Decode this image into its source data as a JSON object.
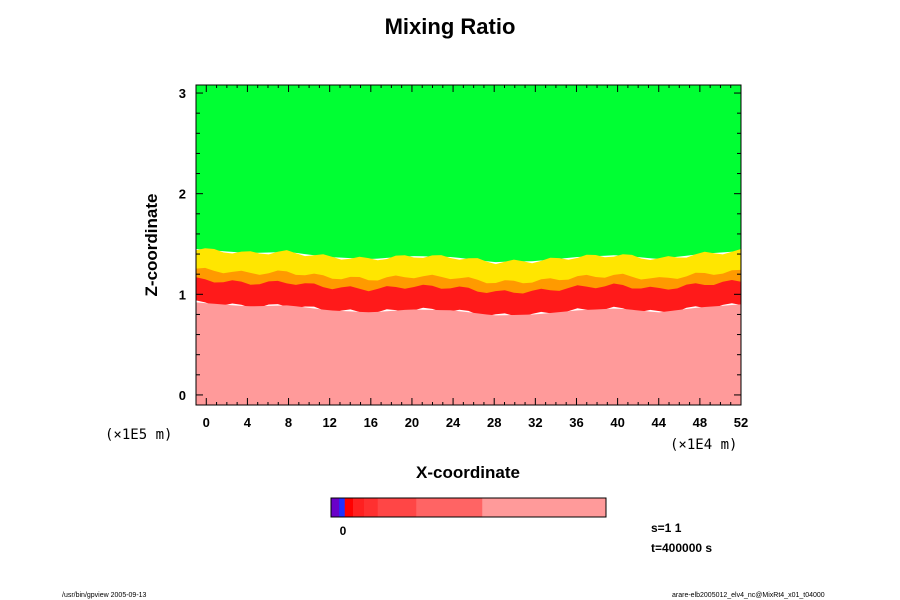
{
  "chart_data": {
    "type": "heatmap",
    "title": "Mixing Ratio",
    "xlabel": "X-coordinate",
    "ylabel": "Z-coordinate",
    "x_unit": "(×1E4 m)",
    "y_unit": "(×1E5 m)",
    "xlim": [
      -1,
      52
    ],
    "ylim": [
      -0.1,
      3.08
    ],
    "x_ticks": [
      "0",
      "4",
      "8",
      "12",
      "16",
      "20",
      "24",
      "28",
      "32",
      "36",
      "40",
      "44",
      "48",
      "52"
    ],
    "y_ticks": [
      "0",
      "1",
      "2",
      "3"
    ],
    "layers": [
      {
        "name": "upper",
        "z_from": 1.45,
        "z_to": 3.08,
        "color": "#00ff33"
      },
      {
        "name": "transition-yellow",
        "z_from": 1.22,
        "z_to": 1.45,
        "color": "#ffe600"
      },
      {
        "name": "transition-orange",
        "z_from": 1.12,
        "z_to": 1.25,
        "color": "#ff9a00"
      },
      {
        "name": "strong-red",
        "z_from": 0.92,
        "z_to": 1.15,
        "color": "#ff1a1a"
      },
      {
        "name": "lower",
        "z_from": -0.1,
        "z_to": 0.92,
        "color": "#ff9a9a"
      }
    ],
    "interface_profile_x": [
      -1,
      4,
      8,
      12,
      16,
      20,
      24,
      28,
      32,
      36,
      40,
      44,
      48,
      52
    ],
    "interface_profile_z": [
      1.2,
      1.16,
      1.17,
      1.12,
      1.1,
      1.13,
      1.12,
      1.07,
      1.08,
      1.12,
      1.14,
      1.1,
      1.15,
      1.18
    ],
    "colorbar": {
      "tick_label": "0",
      "segments": [
        {
          "color": "#6a00c8",
          "width": 0.03
        },
        {
          "color": "#2030ff",
          "width": 0.02
        },
        {
          "color": "#ff0000",
          "width": 0.03
        },
        {
          "color": "#ff2020",
          "width": 0.04
        },
        {
          "color": "#ff3030",
          "width": 0.05
        },
        {
          "color": "#ff4646",
          "width": 0.14
        },
        {
          "color": "#ff6464",
          "width": 0.24
        },
        {
          "color": "#ff9a9a",
          "width": 0.45
        }
      ]
    },
    "info": [
      "s=1 1",
      "t=400000 s"
    ]
  },
  "footer": {
    "left": "/usr/bin/gpview 2005-09-13",
    "right": "arare-elb2005012_elv4_nc@MixRt4_x01_t04000"
  }
}
